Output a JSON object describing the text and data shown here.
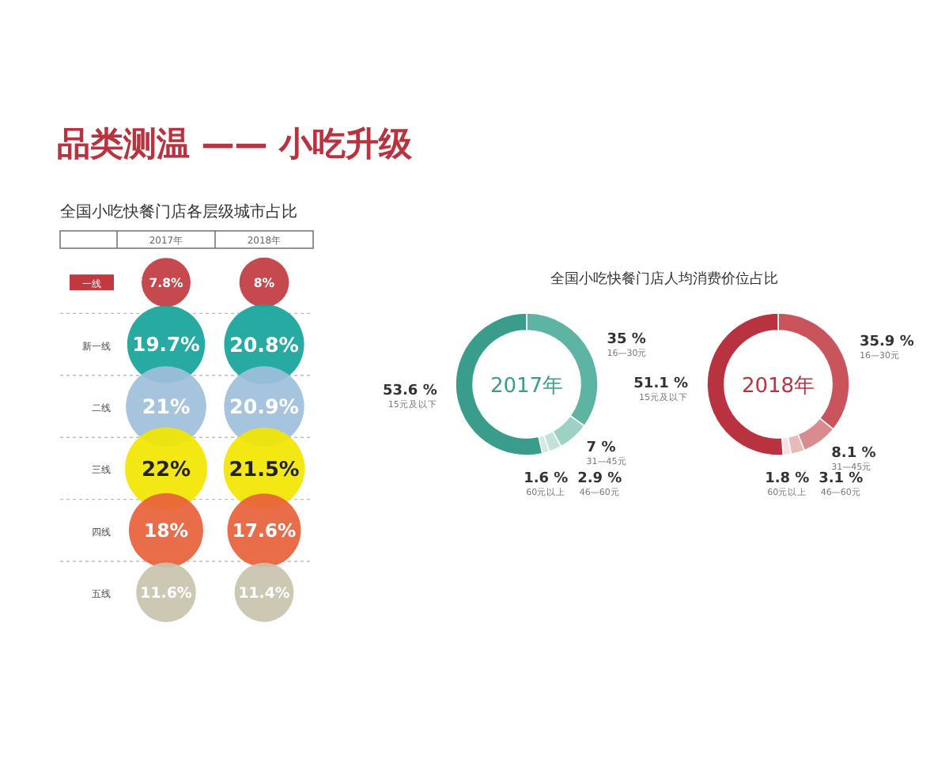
{
  "chart_data": [
    {
      "type": "other",
      "title": "品类测温 —— 小吃升级",
      "subtitle": "全国小吃快餐门店各层级城市占比",
      "categories": [
        "2017年",
        "2018年"
      ],
      "series": [
        {
          "name": "一线",
          "color": "#c0393f",
          "values": [
            7.8,
            8
          ],
          "value_labels": [
            "7.8%",
            "8%"
          ]
        },
        {
          "name": "新一线",
          "color": "#13a39a",
          "values": [
            19.7,
            20.8
          ],
          "value_labels": [
            "19.7%",
            "20.8%"
          ]
        },
        {
          "name": "二线",
          "color": "#9fbfdc",
          "values": [
            21,
            20.9
          ],
          "value_labels": [
            "21%",
            "20.9%"
          ]
        },
        {
          "name": "三线",
          "color": "#f2e600",
          "values": [
            22,
            21.5
          ],
          "value_labels": [
            "22%",
            "21.5%"
          ]
        },
        {
          "name": "四线",
          "color": "#e8613a",
          "values": [
            18,
            17.6
          ],
          "value_labels": [
            "18%",
            "17.6%"
          ]
        },
        {
          "name": "五线",
          "color": "#c9c3ad",
          "values": [
            11.6,
            11.4
          ],
          "value_labels": [
            "11.6%",
            "11.4%"
          ]
        }
      ]
    },
    {
      "type": "donut",
      "title": "全国小吃快餐门店人均消费价位占比",
      "annotations": [
        "2017年"
      ],
      "categories": [
        "16—30元",
        "31—45元",
        "46—60元",
        "60元以上",
        "15元及以下"
      ],
      "values": [
        35,
        7,
        2.9,
        1.6,
        53.6
      ],
      "value_labels": [
        "35 %",
        "7 %",
        "2.9 %",
        "1.6 %",
        "53.6 %"
      ],
      "colors": [
        "#5db4a3",
        "#9dd1c5",
        "#c3e2da",
        "#d3eae4",
        "#3a9d8b"
      ]
    },
    {
      "type": "donut",
      "annotations": [
        "2018年"
      ],
      "categories": [
        "16—30元",
        "31—45元",
        "46—60元",
        "60元以上",
        "15元及以下"
      ],
      "values": [
        35.9,
        8.1,
        3.1,
        1.8,
        51.1
      ],
      "value_labels": [
        "35.9 %",
        "8.1 %",
        "3.1 %",
        "1.8 %",
        "51.1 %"
      ],
      "colors": [
        "#c9545c",
        "#da8b8d",
        "#e9baba",
        "#f6e2e2",
        "#b8323f"
      ]
    }
  ]
}
